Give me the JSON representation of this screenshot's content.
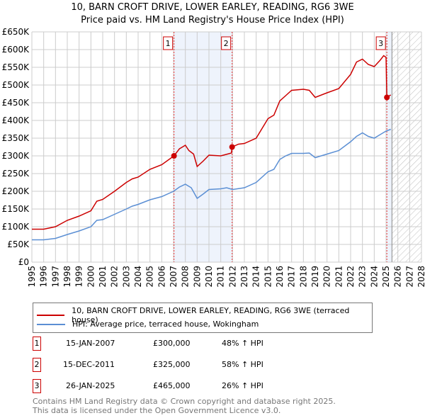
{
  "chart_data": {
    "type": "line",
    "title": "10, BARN CROFT DRIVE, LOWER EARLEY, READING, RG6 3WE",
    "subtitle": "Price paid vs. HM Land Registry's House Price Index (HPI)",
    "xlim": [
      1995,
      2028
    ],
    "ylim": [
      0,
      650000
    ],
    "y_ticks": [
      {
        "v": 0,
        "l": "£0"
      },
      {
        "v": 50000,
        "l": "£50K"
      },
      {
        "v": 100000,
        "l": "£100K"
      },
      {
        "v": 150000,
        "l": "£150K"
      },
      {
        "v": 200000,
        "l": "£200K"
      },
      {
        "v": 250000,
        "l": "£250K"
      },
      {
        "v": 300000,
        "l": "£300K"
      },
      {
        "v": 350000,
        "l": "£350K"
      },
      {
        "v": 400000,
        "l": "£400K"
      },
      {
        "v": 450000,
        "l": "£450K"
      },
      {
        "v": 500000,
        "l": "£500K"
      },
      {
        "v": 550000,
        "l": "£550K"
      },
      {
        "v": 600000,
        "l": "£600K"
      },
      {
        "v": 650000,
        "l": "£650K"
      }
    ],
    "x_ticks": [
      "1995",
      "1996",
      "1997",
      "1998",
      "1999",
      "2000",
      "2001",
      "2002",
      "2003",
      "2004",
      "2005",
      "2006",
      "2007",
      "2008",
      "2009",
      "2010",
      "2011",
      "2012",
      "2013",
      "2014",
      "2015",
      "2016",
      "2017",
      "2018",
      "2019",
      "2020",
      "2021",
      "2022",
      "2023",
      "2024",
      "2025",
      "2026",
      "2027",
      "2028"
    ],
    "grid": true,
    "series": [
      {
        "name": "10, BARN CROFT DRIVE, LOWER EARLEY, READING, RG6 3WE (terraced house)",
        "color": "#cc0000",
        "x": [
          1995,
          1996,
          1997,
          1998,
          1999,
          2000,
          2000.5,
          2001,
          2002,
          2003,
          2003.5,
          2004,
          2005,
          2006,
          2007.04,
          2007.5,
          2008,
          2008.3,
          2008.7,
          2009,
          2009.5,
          2010,
          2011,
          2011.9,
          2011.96,
          2012.5,
          2013,
          2014,
          2015,
          2015.5,
          2016,
          2016.5,
          2017,
          2018,
          2018.5,
          2019,
          2020,
          2021,
          2022,
          2022.5,
          2023,
          2023.5,
          2024,
          2024.5,
          2024.8,
          2025.0,
          2025.07,
          2025.4
        ],
        "y": [
          93000,
          93000,
          100000,
          118000,
          130000,
          145000,
          172000,
          177000,
          200000,
          225000,
          235000,
          240000,
          262000,
          275000,
          300000,
          320000,
          330000,
          315000,
          305000,
          270000,
          285000,
          302000,
          300000,
          308000,
          325000,
          333000,
          335000,
          350000,
          405000,
          415000,
          455000,
          470000,
          485000,
          488000,
          485000,
          465000,
          478000,
          490000,
          530000,
          565000,
          573000,
          558000,
          552000,
          570000,
          583000,
          578000,
          465000,
          472000
        ]
      },
      {
        "name": "HPI: Average price, terraced house, Wokingham",
        "color": "#5b8fd4",
        "x": [
          1995,
          1996,
          1997,
          1998,
          1999,
          2000,
          2000.5,
          2001,
          2002,
          2003,
          2003.5,
          2004,
          2005,
          2006,
          2007,
          2007.5,
          2008,
          2008.5,
          2009,
          2009.5,
          2010,
          2011,
          2011.5,
          2012,
          2013,
          2014,
          2015,
          2015.5,
          2016,
          2016.5,
          2017,
          2018,
          2018.5,
          2019,
          2020,
          2021,
          2022,
          2022.5,
          2023,
          2023.5,
          2024,
          2024.5,
          2025,
          2025.4
        ],
        "y": [
          63000,
          63000,
          67000,
          78000,
          88000,
          100000,
          118000,
          120000,
          135000,
          150000,
          158000,
          163000,
          176000,
          185000,
          200000,
          212000,
          220000,
          210000,
          180000,
          192000,
          205000,
          207000,
          210000,
          205000,
          210000,
          225000,
          255000,
          262000,
          290000,
          300000,
          307000,
          307000,
          308000,
          295000,
          305000,
          315000,
          340000,
          355000,
          365000,
          355000,
          350000,
          360000,
          370000,
          375000
        ]
      }
    ],
    "sales": [
      {
        "n": "1",
        "x": 2007.04,
        "y": 300000,
        "date": "15-JAN-2007",
        "price": "£300,000",
        "hpi": "48% ↑ HPI"
      },
      {
        "n": "2",
        "x": 2011.96,
        "y": 325000,
        "date": "15-DEC-2011",
        "price": "£325,000",
        "hpi": "58% ↑ HPI"
      },
      {
        "n": "3",
        "x": 2025.07,
        "y": 465000,
        "date": "26-JAN-2025",
        "price": "£465,000",
        "hpi": "26% ↑ HPI"
      }
    ],
    "forecast_start": 2025.5,
    "legend_placement": "below"
  },
  "footer": {
    "line1": "Contains HM Land Registry data © Crown copyright and database right 2025.",
    "line2": "This data is licensed under the Open Government Licence v3.0."
  }
}
